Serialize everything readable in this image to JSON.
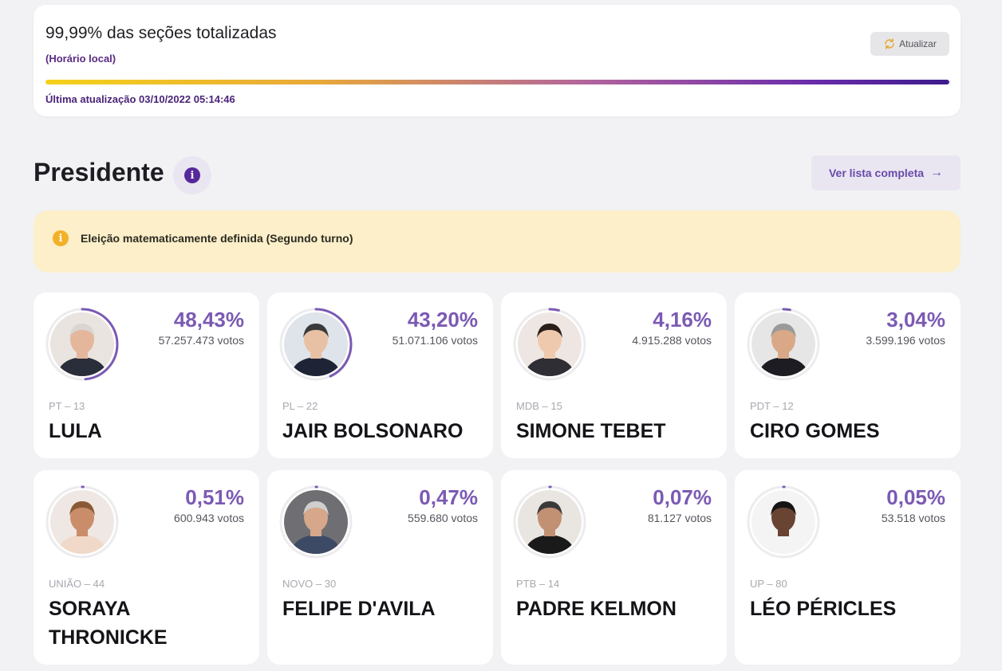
{
  "status": {
    "title": "99,99% das seções totalizadas",
    "subtitle": "(Horário local)",
    "refresh_label": "Atualizar",
    "progress_fraction": 0.9999,
    "last_update": "Última atualização 03/10/2022 05:14:46"
  },
  "section": {
    "title": "Presidente",
    "info_glyph": "i",
    "full_list_label": "Ver lista completa",
    "full_list_arrow": "→"
  },
  "alert": {
    "icon": "info-icon",
    "text": "Eleição matematicamente definida (Segundo turno)"
  },
  "colors": {
    "accent": "#7b5ab3",
    "brand": "#5b2a86",
    "alert_bg": "#fcefc9"
  },
  "candidates": [
    {
      "pct": "48,43%",
      "share": 0.4843,
      "votes": "57.257.473 votos",
      "party": "PT – 13",
      "name": "LULA"
    },
    {
      "pct": "43,20%",
      "share": 0.432,
      "votes": "51.071.106 votos",
      "party": "PL – 22",
      "name": "JAIR BOLSONARO"
    },
    {
      "pct": "4,16%",
      "share": 0.0416,
      "votes": "4.915.288 votos",
      "party": "MDB – 15",
      "name": "SIMONE TEBET"
    },
    {
      "pct": "3,04%",
      "share": 0.0304,
      "votes": "3.599.196 votos",
      "party": "PDT – 12",
      "name": "CIRO GOMES"
    },
    {
      "pct": "0,51%",
      "share": 0.0051,
      "votes": "600.943 votos",
      "party": "UNIÃO – 44",
      "name": "SORAYA THRONICKE"
    },
    {
      "pct": "0,47%",
      "share": 0.0047,
      "votes": "559.680 votos",
      "party": "NOVO – 30",
      "name": "FELIPE D'AVILA"
    },
    {
      "pct": "0,07%",
      "share": 0.0007,
      "votes": "81.127 votos",
      "party": "PTB – 14",
      "name": "PADRE KELMON"
    },
    {
      "pct": "0,05%",
      "share": 0.0005,
      "votes": "53.518 votos",
      "party": "UP – 80",
      "name": "LÉO PÉRICLES"
    }
  ]
}
